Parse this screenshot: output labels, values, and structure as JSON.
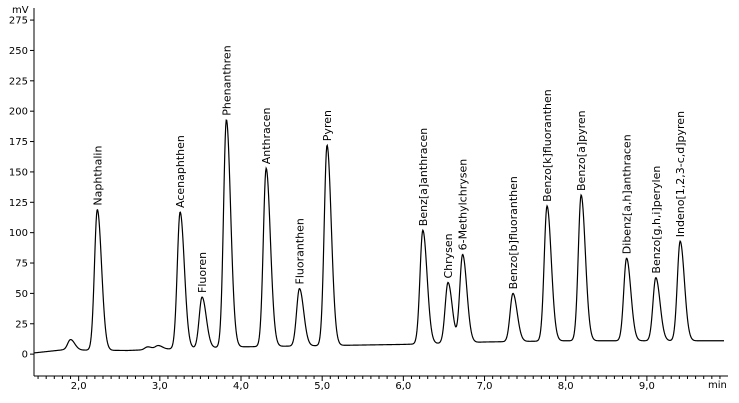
{
  "chart_data": {
    "type": "line",
    "y_unit": "mV",
    "x_unit": "min",
    "xlim": [
      1.45,
      9.95
    ],
    "ylim": [
      -18,
      280
    ],
    "x_ticks": [
      "2,0",
      "3,0",
      "4,0",
      "5,0",
      "6,0",
      "7,0",
      "8,0",
      "9,0"
    ],
    "x_tick_values": [
      2,
      3,
      4,
      5,
      6,
      7,
      8,
      9
    ],
    "y_ticks": [
      "0",
      "25",
      "50",
      "75",
      "100",
      "125",
      "150",
      "175",
      "200",
      "225",
      "250",
      "275"
    ],
    "y_tick_values": [
      0,
      25,
      50,
      75,
      100,
      125,
      150,
      175,
      200,
      225,
      250,
      275
    ],
    "grid": false,
    "baseline": [
      {
        "x": 1.45,
        "y": 1
      },
      {
        "x": 1.8,
        "y": 3.5
      },
      {
        "x": 2.6,
        "y": 3
      },
      {
        "x": 3.0,
        "y": 4
      },
      {
        "x": 4.0,
        "y": 6
      },
      {
        "x": 6.0,
        "y": 8
      },
      {
        "x": 7.0,
        "y": 10
      },
      {
        "x": 8.0,
        "y": 11
      },
      {
        "x": 9.95,
        "y": 11
      }
    ],
    "series": [
      {
        "peaks": [
          {
            "label": "Naphthalin",
            "rt": 2.23,
            "height": 119
          },
          {
            "label": "Acenaphthen",
            "rt": 3.25,
            "height": 117
          },
          {
            "label": "Fluoren",
            "rt": 3.52,
            "height": 47
          },
          {
            "label": "Phenanthren",
            "rt": 3.82,
            "height": 193
          },
          {
            "label": "Anthracen",
            "rt": 4.31,
            "height": 153
          },
          {
            "label": "Fluoranthen",
            "rt": 4.72,
            "height": 54
          },
          {
            "label": "Pyren",
            "rt": 5.06,
            "height": 172
          },
          {
            "label": "Benz[a]anthracen",
            "rt": 6.24,
            "height": 102
          },
          {
            "label": "Chrysen",
            "rt": 6.55,
            "height": 59
          },
          {
            "label": "6-Methylchrysen",
            "rt": 6.73,
            "height": 82
          },
          {
            "label": "Benzo[b]fluoranthen",
            "rt": 7.35,
            "height": 50
          },
          {
            "label": "Benzo[k]fluoranthen",
            "rt": 7.77,
            "height": 122
          },
          {
            "label": "Benzo[a]pyren",
            "rt": 8.19,
            "height": 131
          },
          {
            "label": "Dibenz[a,h]anthracen",
            "rt": 8.75,
            "height": 79
          },
          {
            "label": "Benzo[g,h,i]perylen",
            "rt": 9.11,
            "height": 63
          },
          {
            "label": "Indeno[1,2,3-c,d]pyren",
            "rt": 9.41,
            "height": 93
          }
        ],
        "minor_peaks": [
          {
            "rt": 1.9,
            "height": 12
          },
          {
            "rt": 2.85,
            "height": 6
          },
          {
            "rt": 2.98,
            "height": 7
          }
        ]
      }
    ]
  }
}
